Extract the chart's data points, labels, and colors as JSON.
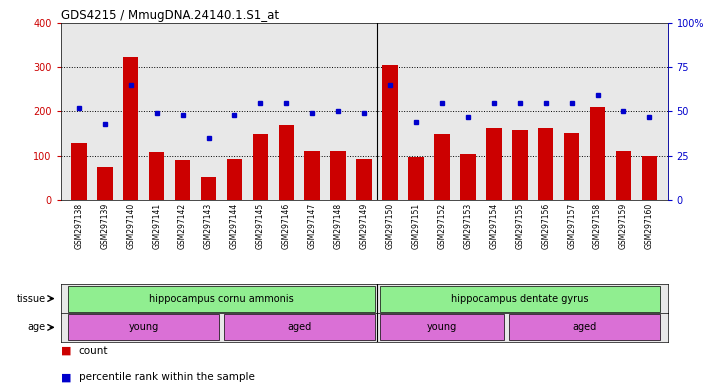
{
  "title": "GDS4215 / MmugDNA.24140.1.S1_at",
  "samples": [
    "GSM297138",
    "GSM297139",
    "GSM297140",
    "GSM297141",
    "GSM297142",
    "GSM297143",
    "GSM297144",
    "GSM297145",
    "GSM297146",
    "GSM297147",
    "GSM297148",
    "GSM297149",
    "GSM297150",
    "GSM297151",
    "GSM297152",
    "GSM297153",
    "GSM297154",
    "GSM297155",
    "GSM297156",
    "GSM297157",
    "GSM297158",
    "GSM297159",
    "GSM297160"
  ],
  "counts": [
    128,
    75,
    322,
    108,
    90,
    52,
    93,
    148,
    170,
    110,
    110,
    93,
    305,
    97,
    148,
    103,
    163,
    158,
    163,
    150,
    210,
    110,
    100
  ],
  "percentiles": [
    52,
    43,
    65,
    49,
    48,
    35,
    48,
    55,
    55,
    49,
    50,
    49,
    65,
    44,
    55,
    47,
    55,
    55,
    55,
    55,
    59,
    50,
    47
  ],
  "bar_color": "#CC0000",
  "dot_color": "#0000CC",
  "plot_bg": "#E8E8E8",
  "ylim_left": [
    0,
    400
  ],
  "ylim_right": [
    0,
    100
  ],
  "yticks_left": [
    0,
    100,
    200,
    300,
    400
  ],
  "yticks_right": [
    0,
    25,
    50,
    75,
    100
  ],
  "background_color": "#ffffff",
  "bar_width": 0.6,
  "tissue_color": "#90EE90",
  "age_young_color": "#DA70D6",
  "age_aged_color": "#DA70D6",
  "tissue_groups": [
    {
      "label": "hippocampus cornu ammonis",
      "start": 0,
      "end": 11
    },
    {
      "label": "hippocampus dentate gyrus",
      "start": 12,
      "end": 22
    }
  ],
  "age_groups": [
    {
      "label": "young",
      "start": 0,
      "end": 5
    },
    {
      "label": "aged",
      "start": 6,
      "end": 11
    },
    {
      "label": "young",
      "start": 12,
      "end": 16
    },
    {
      "label": "aged",
      "start": 17,
      "end": 22
    }
  ]
}
